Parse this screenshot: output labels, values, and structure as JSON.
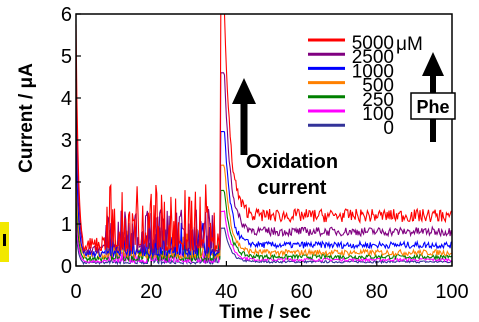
{
  "chart_data": {
    "type": "line",
    "xlabel": "Time / sec",
    "ylabel": "Current / μA",
    "xlim": [
      0,
      100
    ],
    "ylim": [
      0,
      6
    ],
    "x_ticks": [
      "0",
      "20",
      "40",
      "60",
      "80",
      "100"
    ],
    "y_ticks": [
      "0",
      "1",
      "2",
      "3",
      "4",
      "5",
      "6"
    ],
    "grid": false,
    "legend_placement": "top-right",
    "unit_label": "μM",
    "series": [
      {
        "name": "5000",
        "color": "#ff0000",
        "baseline": 0.35,
        "plateau": 1.2,
        "spike": 6.0,
        "noise": 0.9
      },
      {
        "name": "2500",
        "color": "#800080",
        "baseline": 0.3,
        "plateau": 0.82,
        "spike": 4.6,
        "noise": 0.6
      },
      {
        "name": "1000",
        "color": "#0000ff",
        "baseline": 0.22,
        "plateau": 0.5,
        "spike": 3.2,
        "noise": 0.45
      },
      {
        "name": "500",
        "color": "#ff8000",
        "baseline": 0.18,
        "plateau": 0.32,
        "spike": 2.4,
        "noise": 0.4
      },
      {
        "name": "250",
        "color": "#008000",
        "baseline": 0.12,
        "plateau": 0.22,
        "spike": 1.8,
        "noise": 0.3
      },
      {
        "name": "100",
        "color": "#ff00ff",
        "baseline": 0.08,
        "plateau": 0.15,
        "spike": 1.3,
        "noise": 0.2
      },
      {
        "name": "0",
        "color": "#333399",
        "baseline": 0.05,
        "plateau": 0.1,
        "spike": 0.9,
        "noise": 0.15
      }
    ],
    "annotations": {
      "oxidation_line1": "Oxidation",
      "oxidation_line2": "current",
      "phe_label": "Phe"
    }
  }
}
